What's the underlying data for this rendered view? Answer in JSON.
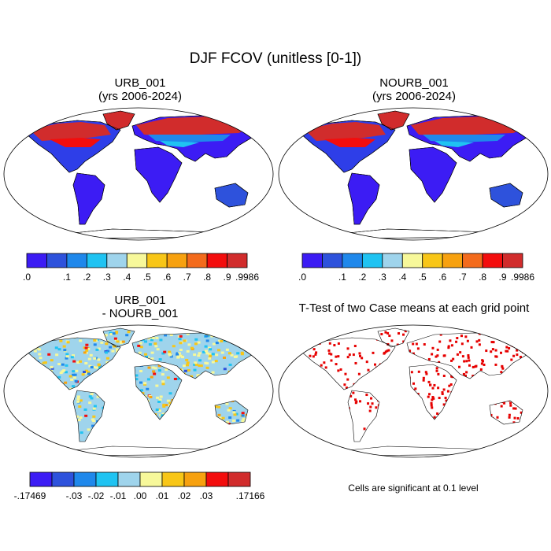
{
  "main_title": "DJF FCOV (unitless [0-1])",
  "chart_data": [
    {
      "type": "heatmap",
      "title_line1": "URB_001",
      "title_line2": "(yrs 2006-2024)",
      "map_projection": "global map",
      "pattern": "high snow-free fraction (near 1.0) at northern high latitudes; low fraction (0.0-0.2) over tropics, southern continents and Antarctica",
      "colorbar": {
        "labels": [
          ".0",
          ".1",
          ".2",
          ".3",
          ".4",
          ".5",
          ".6",
          ".7",
          ".8",
          ".9",
          ".9986"
        ],
        "colors": [
          "#3c1cf4",
          "#2e52dc",
          "#1f88eb",
          "#1fc3f2",
          "#9fd4ec",
          "#f7f89a",
          "#f8c617",
          "#f7a10f",
          "#f36b1c",
          "#f30d0d",
          "#d12c2c"
        ]
      }
    },
    {
      "type": "heatmap",
      "title_line1": "NOURB_001",
      "title_line2": "(yrs 2006-2024)",
      "map_projection": "global map",
      "pattern": "nearly identical to URB_001",
      "colorbar": {
        "labels": [
          ".0",
          ".1",
          ".2",
          ".3",
          ".4",
          ".5",
          ".6",
          ".7",
          ".8",
          ".9",
          ".9986"
        ],
        "colors": [
          "#3c1cf4",
          "#2e52dc",
          "#1f88eb",
          "#1fc3f2",
          "#9fd4ec",
          "#f7f89a",
          "#f8c617",
          "#f7a10f",
          "#f36b1c",
          "#f30d0d",
          "#d12c2c"
        ]
      }
    },
    {
      "type": "heatmap",
      "title_line1": "URB_001",
      "title_line2": "- NOURB_001",
      "map_projection": "global map",
      "pattern": "differences mostly near zero (-0.01 to 0.01) with scattered positive and negative cells",
      "colorbar": {
        "labels": [
          "-.17469",
          "-.03",
          "-.02",
          "-.01",
          ".00",
          ".01",
          ".02",
          ".03",
          ".17166"
        ],
        "colors": [
          "#3c1cf4",
          "#2e52dc",
          "#1f88eb",
          "#1fc3f2",
          "#9fd4ec",
          "#f7f89a",
          "#f8c617",
          "#f7a10f",
          "#f30d0d",
          "#d12c2c"
        ]
      }
    },
    {
      "type": "heatmap",
      "title_line1": "T-Test of two Case means at each grid point",
      "map_projection": "global map",
      "pattern": "red cells mark grid points where the two case means differ significantly",
      "significance_color": "#e60000",
      "note": "Cells are significant at 0.1 level"
    }
  ]
}
